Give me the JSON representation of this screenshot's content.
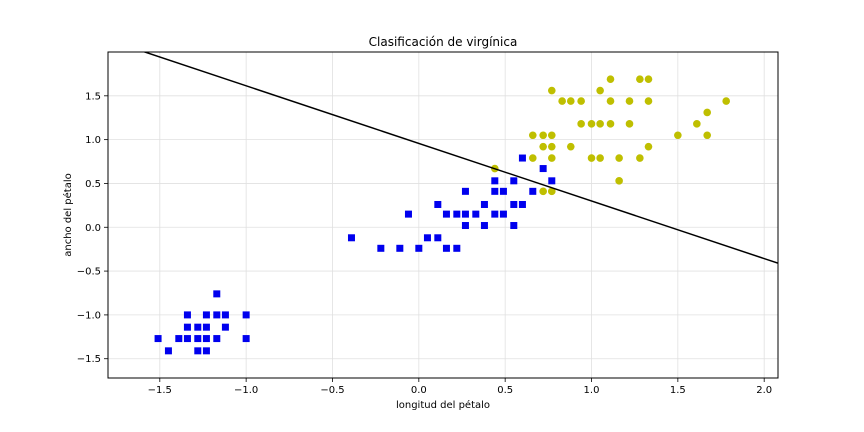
{
  "chart_data": {
    "type": "scatter",
    "title": "Clasificación de virgínica",
    "xlabel": "longitud del pétalo",
    "ylabel": "ancho del pétalo",
    "xlim": [
      -1.8,
      2.08
    ],
    "ylim": [
      -1.72,
      2.0
    ],
    "grid": true,
    "xticks": [
      -1.5,
      -1.0,
      -0.5,
      0.0,
      0.5,
      1.0,
      1.5,
      2.0
    ],
    "xtick_labels": [
      "−1.5",
      "−1.0",
      "−0.5",
      "0.0",
      "0.5",
      "1.0",
      "1.5",
      "2.0"
    ],
    "yticks": [
      -1.5,
      -1.0,
      -0.5,
      0.0,
      0.5,
      1.0,
      1.5
    ],
    "ytick_labels": [
      "−1.5",
      "−1.0",
      "−0.5",
      "0.0",
      "0.5",
      "1.0",
      "1.5"
    ],
    "colors": {
      "no_virginica": "#0000ee",
      "virginica": "#bfbf00",
      "boundary": "#000000",
      "grid": "#e0e0e0"
    },
    "series": [
      {
        "marker": "square",
        "points": [
          [
            -1.51,
            -1.27
          ],
          [
            -1.45,
            -1.41
          ],
          [
            -1.39,
            -1.27
          ],
          [
            -1.34,
            -1.0
          ],
          [
            -1.34,
            -1.14
          ],
          [
            -1.34,
            -1.27
          ],
          [
            -1.28,
            -1.14
          ],
          [
            -1.28,
            -1.27
          ],
          [
            -1.28,
            -1.41
          ],
          [
            -1.23,
            -1.0
          ],
          [
            -1.23,
            -1.14
          ],
          [
            -1.23,
            -1.27
          ],
          [
            -1.23,
            -1.41
          ],
          [
            -1.17,
            -0.76
          ],
          [
            -1.17,
            -1.0
          ],
          [
            -1.17,
            -1.27
          ],
          [
            -1.12,
            -1.0
          ],
          [
            -1.12,
            -1.14
          ],
          [
            -1.0,
            -1.0
          ],
          [
            -1.0,
            -1.27
          ],
          [
            -0.39,
            -0.12
          ],
          [
            -0.22,
            -0.24
          ],
          [
            -0.11,
            -0.24
          ],
          [
            -0.06,
            0.15
          ],
          [
            0.0,
            -0.24
          ],
          [
            0.05,
            -0.12
          ],
          [
            0.11,
            0.26
          ],
          [
            0.11,
            -0.12
          ],
          [
            0.16,
            0.15
          ],
          [
            0.16,
            -0.24
          ],
          [
            0.22,
            0.15
          ],
          [
            0.22,
            -0.24
          ],
          [
            0.27,
            0.41
          ],
          [
            0.27,
            0.15
          ],
          [
            0.27,
            0.02
          ],
          [
            0.33,
            0.15
          ],
          [
            0.38,
            0.26
          ],
          [
            0.38,
            0.02
          ],
          [
            0.44,
            0.53
          ],
          [
            0.44,
            0.41
          ],
          [
            0.44,
            0.15
          ],
          [
            0.49,
            0.41
          ],
          [
            0.49,
            0.15
          ],
          [
            0.55,
            0.53
          ],
          [
            0.55,
            0.26
          ],
          [
            0.55,
            0.02
          ],
          [
            0.6,
            0.79
          ],
          [
            0.6,
            0.26
          ],
          [
            0.66,
            0.41
          ],
          [
            0.72,
            0.67
          ],
          [
            0.77,
            0.53
          ]
        ]
      },
      {
        "marker": "circle",
        "points": [
          [
            0.44,
            0.67
          ],
          [
            0.66,
            1.05
          ],
          [
            0.66,
            0.79
          ],
          [
            0.72,
            1.05
          ],
          [
            0.72,
            0.92
          ],
          [
            0.72,
            0.41
          ],
          [
            0.77,
            1.56
          ],
          [
            0.77,
            1.05
          ],
          [
            0.77,
            0.92
          ],
          [
            0.77,
            0.79
          ],
          [
            0.77,
            0.41
          ],
          [
            0.83,
            1.44
          ],
          [
            0.88,
            1.44
          ],
          [
            0.88,
            0.92
          ],
          [
            0.94,
            1.44
          ],
          [
            0.94,
            1.18
          ],
          [
            1.0,
            1.18
          ],
          [
            1.0,
            0.79
          ],
          [
            1.05,
            1.56
          ],
          [
            1.05,
            1.18
          ],
          [
            1.05,
            0.79
          ],
          [
            1.11,
            1.69
          ],
          [
            1.11,
            1.44
          ],
          [
            1.11,
            1.18
          ],
          [
            1.16,
            0.79
          ],
          [
            1.16,
            0.53
          ],
          [
            1.22,
            1.44
          ],
          [
            1.22,
            1.18
          ],
          [
            1.28,
            1.69
          ],
          [
            1.28,
            0.79
          ],
          [
            1.33,
            1.69
          ],
          [
            1.33,
            1.44
          ],
          [
            1.33,
            0.92
          ],
          [
            1.5,
            1.05
          ],
          [
            1.61,
            1.18
          ],
          [
            1.67,
            1.31
          ],
          [
            1.67,
            1.05
          ],
          [
            1.78,
            1.44
          ]
        ]
      }
    ],
    "decision_boundary": {
      "type": "line",
      "points": [
        [
          -1.8,
          2.14
        ],
        [
          2.08,
          -0.41
        ]
      ]
    }
  }
}
